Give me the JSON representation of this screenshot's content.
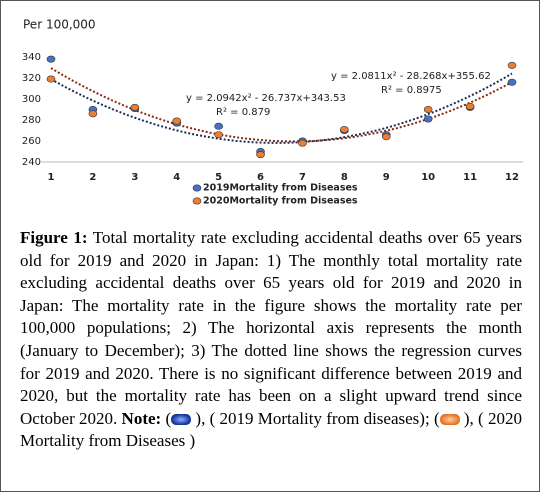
{
  "chart_data": {
    "type": "scatter",
    "y_label": "Per 100,000",
    "x": [
      1,
      2,
      3,
      4,
      5,
      6,
      7,
      8,
      9,
      10,
      11,
      12
    ],
    "xlim": [
      1,
      12
    ],
    "xticks": [
      1,
      2,
      3,
      4,
      5,
      6,
      7,
      8,
      9,
      10,
      11,
      12
    ],
    "ylim": [
      240,
      340
    ],
    "yticks": [
      240,
      260,
      280,
      300,
      320,
      340
    ],
    "grid": false,
    "series": [
      {
        "name": "2019Mortality from Diseases",
        "color": "#4472c4",
        "trend_color": "#1f2d5a",
        "values": [
          338,
          290,
          291,
          277,
          274,
          250,
          260,
          270,
          266,
          281,
          292,
          316
        ],
        "trendline": {
          "equation": "y = 2.0942x² - 26.737x+343.53",
          "r2": "R² = 0.879",
          "coefficients": [
            2.0942,
            -26.737,
            343.53
          ]
        }
      },
      {
        "name": "2020Mortality from Diseases",
        "color": "#ed7d31",
        "trend_color": "#8b2a10",
        "values": [
          319,
          286,
          292,
          279,
          266,
          247,
          258,
          271,
          264,
          290,
          293,
          332
        ],
        "trendline": {
          "equation": "y = 2.0811x² - 28.268x+355.62",
          "r2": "R² = 0.8975",
          "coefficients": [
            2.0811,
            -28.268,
            355.62
          ]
        }
      }
    ]
  },
  "caption": {
    "label": "Figure 1:",
    "text": " Total mortality rate excluding accidental deaths over 65 years old for 2019 and 2020 in Japan: 1) The monthly total mortality rate excluding accidental deaths over 65 years old for 2019 and 2020 in Japan: The mortality rate in the figure shows the mortality rate per 100,000 populations; 2) The horizontal axis represents the month (January to December); 3) The dotted line shows the regression curves for 2019 and 2020. There is no significant difference between 2019 and 2020, but the mortality rate has been on a slight upward trend since October 2020. ",
    "note_label": "Note:",
    "note_open": " (",
    "note_middle": " ), ( 2019 Mortality from diseases); (",
    "note_end": " ), ( 2020 Mortality from Diseases )"
  }
}
